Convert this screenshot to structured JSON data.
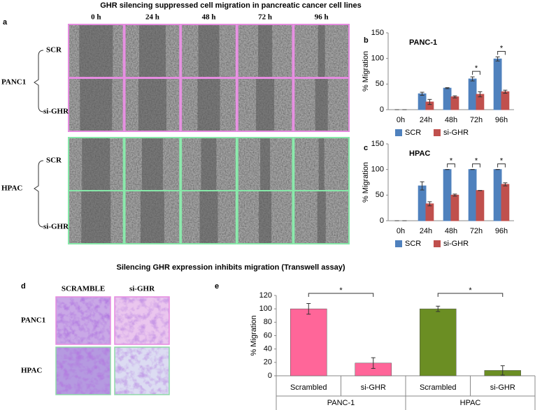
{
  "panels": {
    "a": {
      "letter": "a",
      "title": "GHR  silencing suppressed cell migration in pancreatic cancer cell lines",
      "columns": [
        "0 h",
        "24 h",
        "48 h",
        "72 h",
        "96 h"
      ],
      "groups": [
        {
          "name": "PANC1",
          "rows": [
            "SCR",
            "si-GHR"
          ]
        },
        {
          "name": "HPAC",
          "rows": [
            "SCR",
            "si-GHR"
          ]
        }
      ]
    },
    "b": {
      "letter": "b"
    },
    "c": {
      "letter": "c"
    },
    "d": {
      "letter": "d",
      "title": "Silencing GHR expression inhibits migration (Transwell assay)",
      "columns": [
        "SCRAMBLE",
        "si-GHR"
      ],
      "rows": [
        "PANC1",
        "HPAC"
      ]
    },
    "e": {
      "letter": "e"
    }
  },
  "chart_data": [
    {
      "type": "bar",
      "title": "PANC-1",
      "ylabel": "% Migration",
      "categories": [
        "0h",
        "24h",
        "48h",
        "72h",
        "96h"
      ],
      "series": [
        {
          "name": "SCR",
          "color": "#4f81bd",
          "values": [
            0,
            31,
            42,
            60,
            99
          ],
          "errors": [
            0,
            3,
            1,
            4,
            4
          ]
        },
        {
          "name": "si-GHR",
          "color": "#c0504d",
          "values": [
            0,
            15,
            25,
            30,
            35
          ],
          "errors": [
            0,
            5,
            2,
            5,
            3
          ]
        }
      ],
      "significance": [
        null,
        null,
        null,
        "*",
        "*"
      ],
      "ylim": [
        0,
        150
      ],
      "yticks": [
        0,
        50,
        100,
        150
      ],
      "grid": false,
      "legend": "bottom"
    },
    {
      "type": "bar",
      "title": "HPAC",
      "ylabel": "% Migration",
      "categories": [
        "0h",
        "24h",
        "48h",
        "72h",
        "96h"
      ],
      "series": [
        {
          "name": "SCR",
          "color": "#4f81bd",
          "values": [
            0,
            68,
            100,
            100,
            100
          ],
          "errors": [
            0,
            8,
            0,
            0,
            0
          ]
        },
        {
          "name": "si-GHR",
          "color": "#c0504d",
          "values": [
            0,
            33,
            50,
            59,
            71
          ],
          "errors": [
            0,
            4,
            2,
            0,
            3
          ]
        }
      ],
      "significance": [
        null,
        null,
        "*",
        "*",
        "*"
      ],
      "ylim": [
        0,
        150
      ],
      "yticks": [
        0,
        50,
        100,
        150
      ],
      "grid": false,
      "legend": "bottom"
    },
    {
      "type": "bar",
      "ylabel": "% Migration",
      "categories": [
        "Scrambled",
        "si-GHR",
        "Scrambled",
        "si-GHR"
      ],
      "groups": [
        "PANC-1",
        "HPAC"
      ],
      "values": [
        100,
        19,
        100,
        8
      ],
      "errors": [
        8,
        8,
        4,
        7
      ],
      "colors": [
        "#ff6699",
        "#ff6699",
        "#6b8e23",
        "#6b8e23"
      ],
      "significance": [
        "*",
        "*"
      ],
      "ylim": [
        0,
        120
      ],
      "yticks": [
        0,
        20,
        40,
        60,
        80,
        100,
        120
      ],
      "grid": false
    }
  ]
}
